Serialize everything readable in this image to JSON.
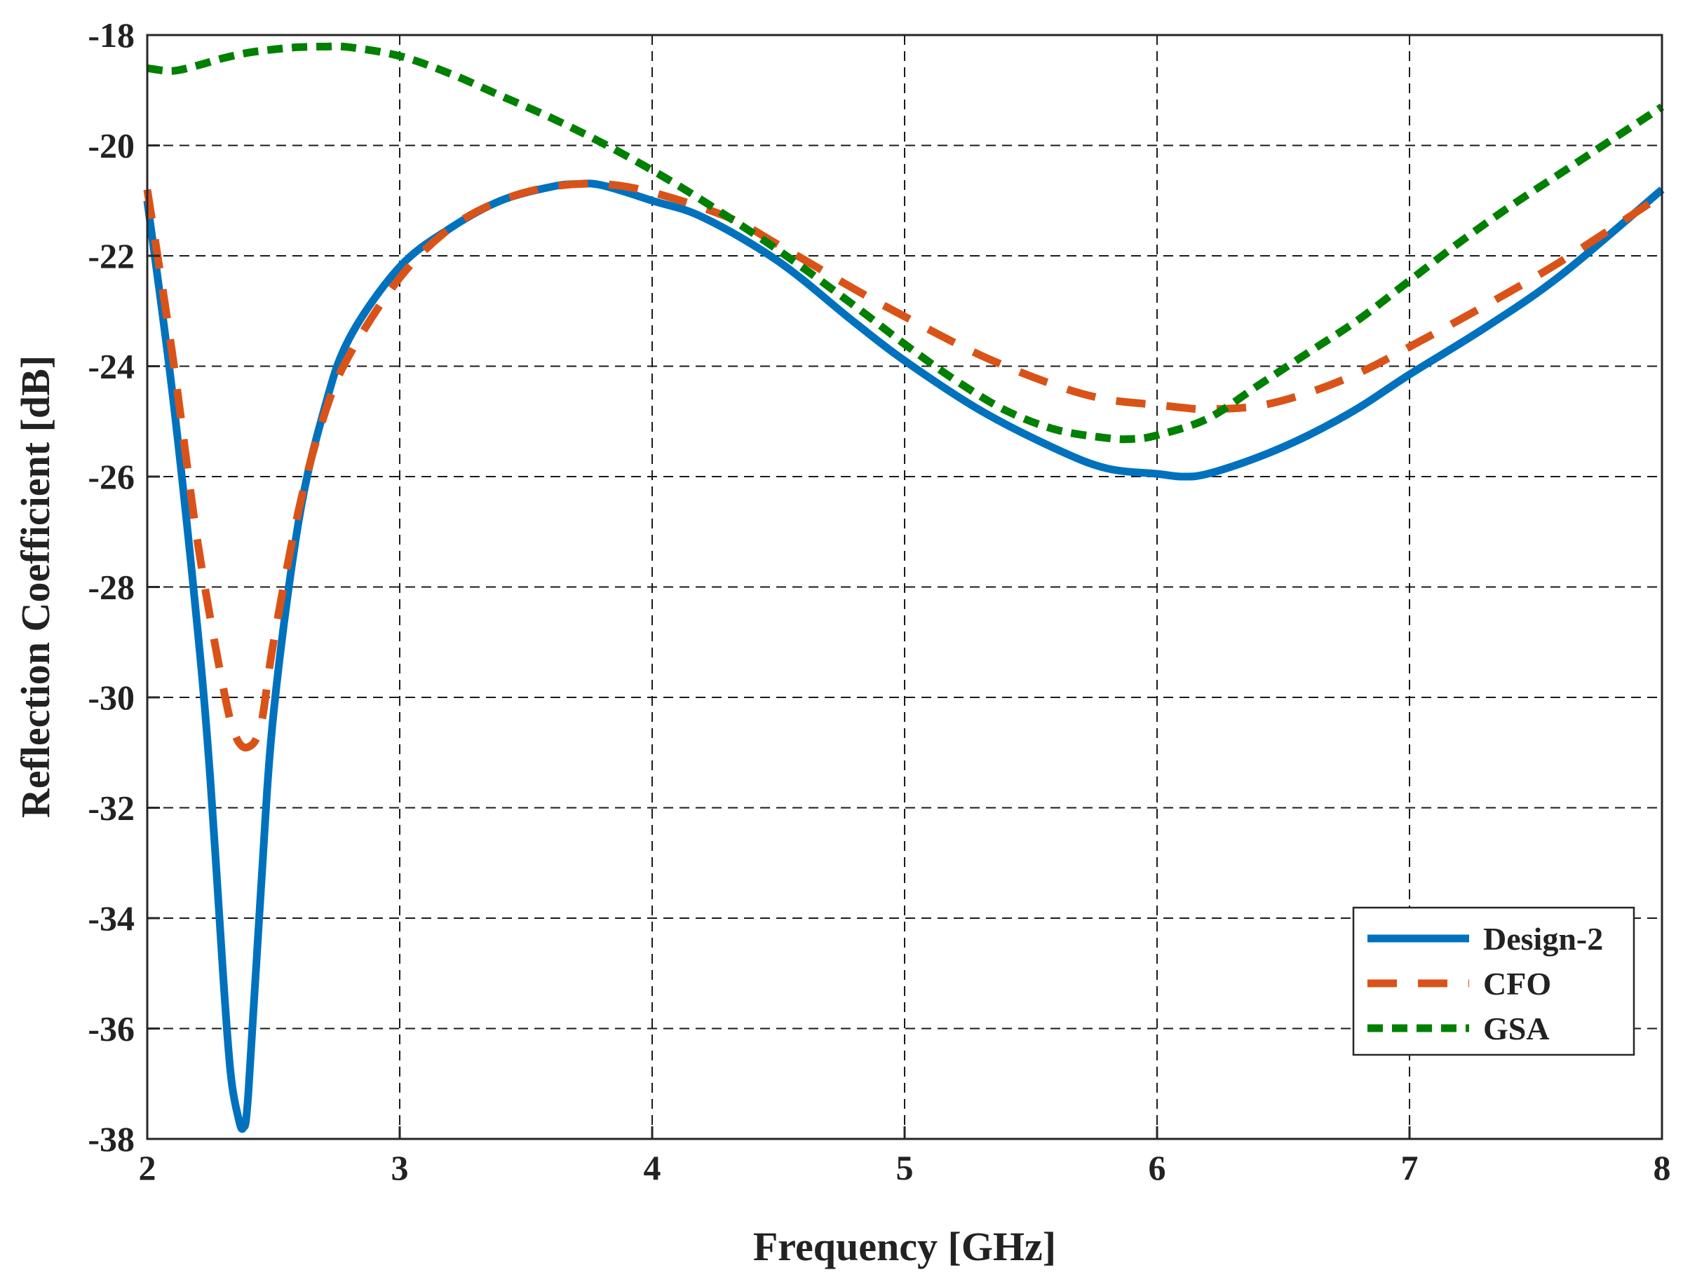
{
  "chart_data": {
    "type": "line",
    "title": "",
    "xlabel": "Frequency [GHz]",
    "ylabel": "Reflection Coefficient [dB]",
    "xlim": [
      2,
      8
    ],
    "ylim": [
      -38,
      -18
    ],
    "xticks": [
      2,
      3,
      4,
      5,
      6,
      7,
      8
    ],
    "yticks": [
      -38,
      -36,
      -34,
      -32,
      -30,
      -28,
      -26,
      -24,
      -22,
      -20,
      -18
    ],
    "xtick_labels": [
      "2",
      "3",
      "4",
      "5",
      "6",
      "7",
      "8"
    ],
    "ytick_labels": [
      "-38",
      "-36",
      "-34",
      "-32",
      "-30",
      "-28",
      "-26",
      "-24",
      "-22",
      "-20",
      "-18"
    ],
    "grid": true,
    "legend_position": "bottom-right",
    "series": [
      {
        "name": "Design-2",
        "color": "#0072BD",
        "style": "solid",
        "x": [
          2.0,
          2.1,
          2.2,
          2.25,
          2.3,
          2.33,
          2.36,
          2.38,
          2.4,
          2.45,
          2.5,
          2.6,
          2.7,
          2.8,
          3.0,
          3.2,
          3.4,
          3.6,
          3.7,
          3.8,
          4.0,
          4.2,
          4.5,
          4.8,
          5.0,
          5.3,
          5.6,
          5.8,
          6.0,
          6.1,
          6.2,
          6.4,
          6.6,
          6.8,
          7.0,
          7.3,
          7.6,
          8.0
        ],
        "y": [
          -21.0,
          -24.5,
          -28.8,
          -31.5,
          -35.0,
          -36.8,
          -37.6,
          -37.8,
          -37.2,
          -33.5,
          -30.3,
          -26.8,
          -24.8,
          -23.5,
          -22.2,
          -21.5,
          -21.0,
          -20.75,
          -20.7,
          -20.72,
          -21.0,
          -21.3,
          -22.1,
          -23.2,
          -23.9,
          -24.8,
          -25.5,
          -25.85,
          -25.95,
          -26.0,
          -25.95,
          -25.65,
          -25.25,
          -24.75,
          -24.15,
          -23.3,
          -22.35,
          -20.8
        ]
      },
      {
        "name": "CFO",
        "color": "#D95319",
        "style": "dashed",
        "x": [
          2.0,
          2.1,
          2.2,
          2.3,
          2.35,
          2.4,
          2.45,
          2.5,
          2.6,
          2.7,
          2.8,
          3.0,
          3.2,
          3.4,
          3.6,
          3.8,
          4.0,
          4.3,
          4.5,
          4.8,
          5.0,
          5.3,
          5.6,
          5.8,
          6.0,
          6.1,
          6.2,
          6.4,
          6.6,
          6.8,
          7.0,
          7.3,
          7.6,
          8.0
        ],
        "y": [
          -20.8,
          -23.8,
          -27.2,
          -29.8,
          -30.7,
          -30.9,
          -30.5,
          -29.0,
          -26.6,
          -24.9,
          -23.8,
          -22.4,
          -21.5,
          -21.0,
          -20.75,
          -20.7,
          -20.85,
          -21.3,
          -21.8,
          -22.6,
          -23.1,
          -23.8,
          -24.35,
          -24.6,
          -24.7,
          -24.75,
          -24.78,
          -24.72,
          -24.48,
          -24.12,
          -23.65,
          -22.9,
          -22.1,
          -20.9
        ]
      },
      {
        "name": "GSA",
        "color": "#008000",
        "style": "short-dashed",
        "x": [
          2.0,
          2.1,
          2.2,
          2.3,
          2.4,
          2.5,
          2.6,
          2.7,
          2.8,
          3.0,
          3.2,
          3.4,
          3.6,
          3.8,
          4.0,
          4.2,
          4.5,
          4.8,
          5.0,
          5.2,
          5.4,
          5.6,
          5.8,
          5.9,
          6.0,
          6.2,
          6.4,
          6.6,
          6.8,
          7.0,
          7.2,
          7.4,
          7.6,
          7.8,
          8.0
        ],
        "y": [
          -18.6,
          -18.65,
          -18.55,
          -18.42,
          -18.32,
          -18.26,
          -18.22,
          -18.21,
          -18.22,
          -18.38,
          -18.7,
          -19.1,
          -19.5,
          -19.95,
          -20.45,
          -21.0,
          -21.9,
          -22.9,
          -23.6,
          -24.25,
          -24.8,
          -25.15,
          -25.3,
          -25.32,
          -25.25,
          -24.95,
          -24.35,
          -23.75,
          -23.15,
          -22.45,
          -21.75,
          -21.1,
          -20.5,
          -19.9,
          -19.3
        ]
      }
    ]
  }
}
